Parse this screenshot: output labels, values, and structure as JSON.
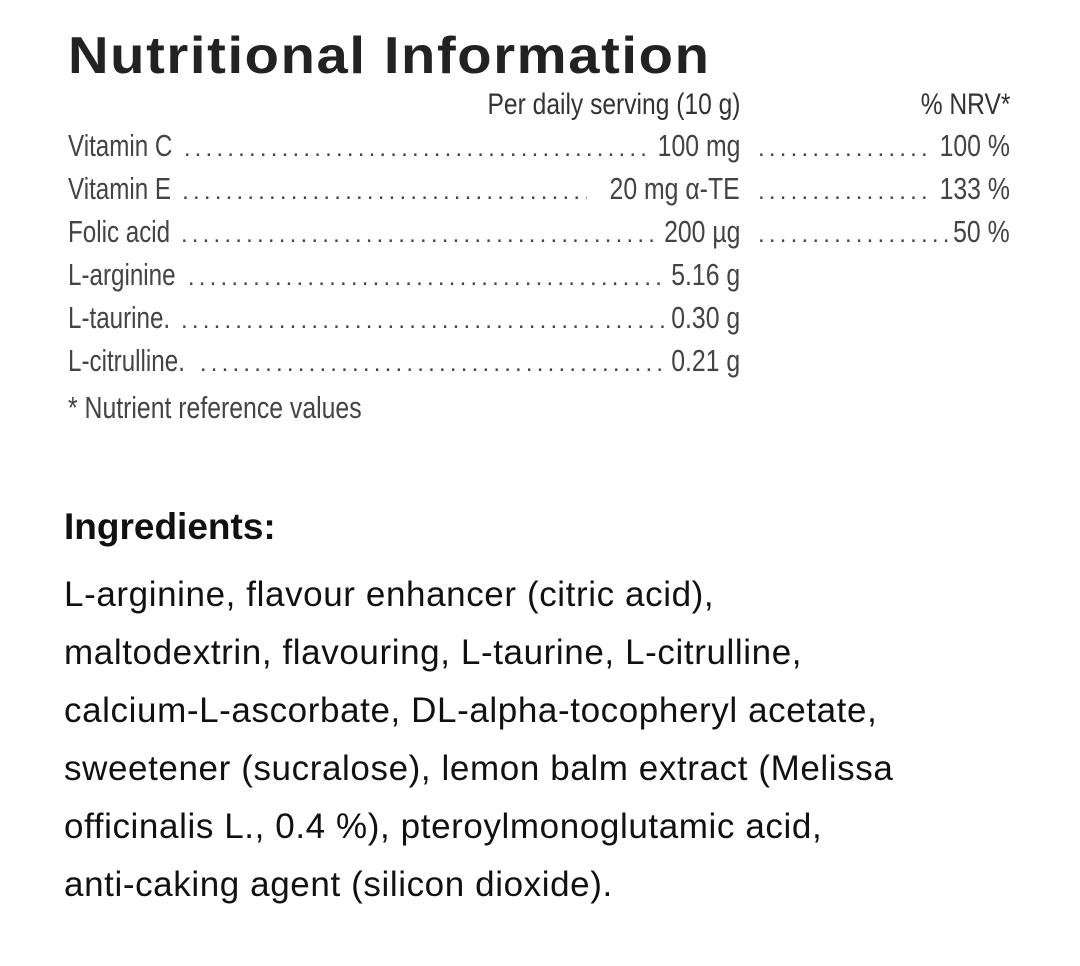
{
  "nutrition": {
    "title": "Nutritional Information",
    "col_serving": "Per daily serving (10 g)",
    "col_nrv": "% NRV*",
    "rows": [
      {
        "label": "Vitamin C",
        "value": "100 mg",
        "nrv": "100 %"
      },
      {
        "label": "Vitamin E",
        "value": "20 mg α-TE",
        "nrv": "133 %"
      },
      {
        "label": "Folic acid",
        "value": "200 µg",
        "nrv": "50 %"
      },
      {
        "label": "L-arginine",
        "value": "5.16 g"
      },
      {
        "label": "L-taurine.",
        "value": "0.30 g"
      },
      {
        "label": "L-citrulline.",
        "value": "0.21 g"
      }
    ],
    "footnote": "* Nutrient reference values"
  },
  "ingredients": {
    "heading": "Ingredients:",
    "lines": [
      "L-arginine, flavour enhancer (citric acid),",
      "maltodextrin, flavouring, L-taurine, L-citrulline,",
      "calcium-L-ascorbate, DL-alpha-tocopheryl acetate,",
      "sweetener (sucralose), lemon balm extract (Melissa",
      "officinalis L., 0.4 %), pteroylmonoglutamic acid,",
      "anti-caking agent (silicon dioxide)."
    ]
  }
}
